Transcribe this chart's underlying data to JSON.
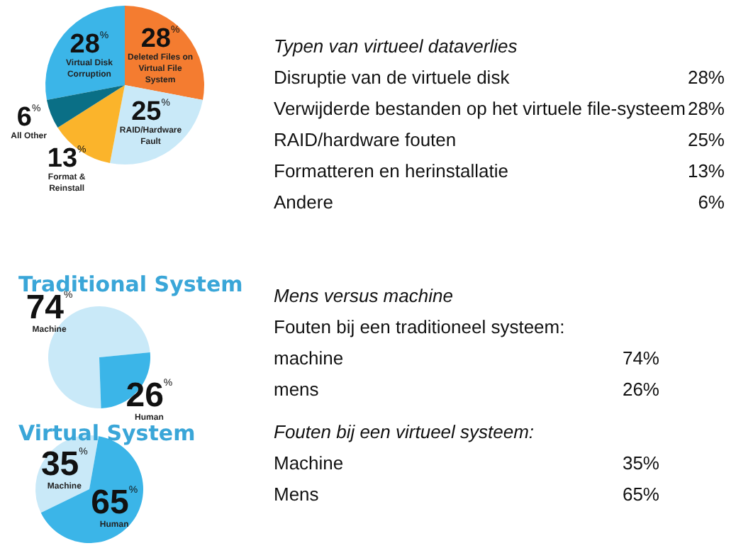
{
  "chart_data": [
    {
      "type": "pie",
      "subtitle": "Typen van virtueel dataverlies",
      "categories": [
        "Virtual Disk Corruption",
        "Deleted Files on Virtual File System",
        "RAID/Hardware Fault",
        "Format & Reinstall",
        "All Other"
      ],
      "values": [
        28,
        28,
        25,
        13,
        6
      ],
      "value_labels": [
        "28%",
        "28%",
        "25%",
        "13%",
        "6%"
      ],
      "colors": [
        "#3bb5e8",
        "#f47c30",
        "#c9e9f8",
        "#fbb42b",
        "#0a6f86"
      ],
      "annotations": [
        "Disruptie van de virtuele disk",
        "28%",
        "Verwijderde bestanden op het virtuele file-systeem",
        "28%",
        "RAID/hardware fouten",
        "25%",
        "Formatteren en herinstallatie",
        "13%",
        "Andere",
        "6%"
      ]
    },
    {
      "type": "pie",
      "title": "Traditional System",
      "subtitle": "Mens versus machine",
      "categories": [
        "Machine",
        "Human"
      ],
      "values": [
        74,
        26
      ],
      "value_labels": [
        "74%",
        "26%"
      ],
      "colors": [
        "#c9e9f8",
        "#3bb5e8"
      ],
      "annotations": [
        "Fouten bij een traditioneel systeem:",
        "machine",
        "74%",
        "mens",
        "26%"
      ]
    },
    {
      "type": "pie",
      "title": "Virtual System",
      "categories": [
        "Machine",
        "Human"
      ],
      "values": [
        35,
        65
      ],
      "value_labels": [
        "35%",
        "65%"
      ],
      "colors": [
        "#c9e9f8",
        "#3bb5e8"
      ],
      "annotations": [
        "Fouten bij een virtueel systeem:",
        "Machine",
        "35%",
        "Mens",
        "65%"
      ]
    }
  ]
}
